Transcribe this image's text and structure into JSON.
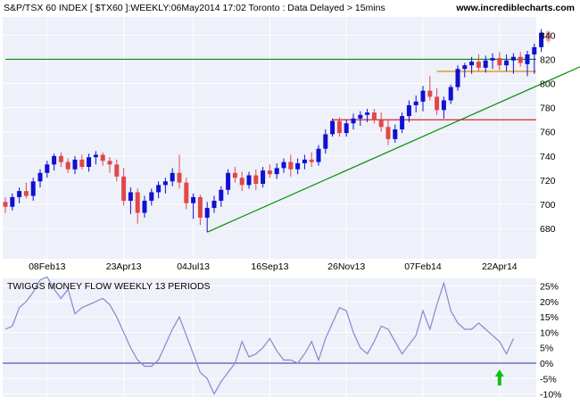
{
  "colors": {
    "background": "#ffffff",
    "plot_background": "#eef0fa",
    "grid": "#ffffff",
    "up_candle": "#1010d0",
    "down_candle": "#e04848",
    "last_candle": "#f2a0a8",
    "long_trendline": "#009000",
    "resistance_green": "#009000",
    "support_orange": "#e08a00",
    "support_red": "#d01010",
    "indicator_line": "#8888cc",
    "zero_line": "#3030a0",
    "arrow": "#10c010",
    "text": "#000000"
  },
  "header": {
    "title": "S&P/TSX 60 INDEX [ $TX60 ]:WEEKLY:06May2014 17:02 Toronto : Data Delayed > 15mins",
    "watermark": "www.incrediblecharts.com"
  },
  "indicator": {
    "title": "TWIGGS MONEY FLOW WEEKLY 13 PERIODS"
  },
  "chart_data": [
    {
      "type": "candlestick",
      "title": "S&P/TSX 60 INDEX [ $TX60 ]:WEEKLY:06May2014 17:02 Toronto : Data Delayed > 15mins",
      "x_tick_labels": [
        "08Feb13",
        "23Apr13",
        "04Jul13",
        "16Sep13",
        "26Nov13",
        "07Feb14",
        "22Apr14"
      ],
      "x_tick_index": [
        6,
        17,
        27,
        38,
        49,
        60,
        71
      ],
      "y_tick_labels": [
        "680",
        "700",
        "720",
        "740",
        "760",
        "780",
        "800",
        "820",
        "840"
      ],
      "ylim": [
        655,
        855
      ],
      "grid": true,
      "series": [
        {
          "values": [
            [
              702,
              706,
              693,
              698
            ],
            [
              698,
              709,
              695,
              706
            ],
            [
              706,
              714,
              701,
              711
            ],
            [
              711,
              718,
              705,
              707
            ],
            [
              707,
              722,
              703,
              719
            ],
            [
              719,
              729,
              714,
              726
            ],
            [
              726,
              736,
              722,
              733
            ],
            [
              733,
              742,
              728,
              740
            ],
            [
              740,
              743,
              731,
              735
            ],
            [
              735,
              738,
              726,
              729
            ],
            [
              729,
              740,
              725,
              737
            ],
            [
              737,
              741,
              729,
              731
            ],
            [
              731,
              742,
              727,
              739
            ],
            [
              739,
              744,
              733,
              741
            ],
            [
              741,
              743,
              732,
              736
            ],
            [
              736,
              739,
              726,
              733
            ],
            [
              733,
              737,
              719,
              723
            ],
            [
              723,
              730,
              699,
              703
            ],
            [
              703,
              714,
              692,
              710
            ],
            [
              710,
              713,
              684,
              693
            ],
            [
              693,
              707,
              689,
              703
            ],
            [
              703,
              713,
              699,
              710
            ],
            [
              710,
              719,
              705,
              716
            ],
            [
              716,
              722,
              709,
              719
            ],
            [
              719,
              730,
              715,
              726
            ],
            [
              726,
              741,
              713,
              718
            ],
            [
              718,
              722,
              696,
              701
            ],
            [
              701,
              709,
              688,
              706
            ],
            [
              706,
              708,
              683,
              689
            ],
            [
              689,
              702,
              677,
              697
            ],
            [
              697,
              707,
              693,
              703
            ],
            [
              703,
              715,
              698,
              712
            ],
            [
              712,
              729,
              708,
              726
            ],
            [
              726,
              731,
              718,
              722
            ],
            [
              722,
              727,
              711,
              716
            ],
            [
              716,
              727,
              713,
              724
            ],
            [
              724,
              729,
              712,
              717
            ],
            [
              717,
              731,
              714,
              728
            ],
            [
              728,
              733,
              722,
              725
            ],
            [
              725,
              734,
              721,
              730
            ],
            [
              730,
              738,
              726,
              735
            ],
            [
              735,
              741,
              723,
              729
            ],
            [
              729,
              738,
              725,
              734
            ],
            [
              734,
              741,
              729,
              737
            ],
            [
              737,
              743,
              731,
              735
            ],
            [
              735,
              749,
              732,
              746
            ],
            [
              746,
              762,
              742,
              758
            ],
            [
              758,
              771,
              756,
              769
            ],
            [
              769,
              772,
              756,
              759
            ],
            [
              759,
              770,
              756,
              767
            ],
            [
              767,
              775,
              762,
              771
            ],
            [
              771,
              777,
              765,
              774
            ],
            [
              774,
              779,
              768,
              776
            ],
            [
              776,
              779,
              767,
              770
            ],
            [
              770,
              776,
              760,
              764
            ],
            [
              764,
              770,
              749,
              754
            ],
            [
              754,
              766,
              751,
              762
            ],
            [
              762,
              776,
              759,
              773
            ],
            [
              773,
              786,
              768,
              782
            ],
            [
              782,
              790,
              776,
              785
            ],
            [
              785,
              798,
              777,
              794
            ],
            [
              794,
              806,
              786,
              789
            ],
            [
              789,
              796,
              774,
              778
            ],
            [
              778,
              789,
              771,
              786
            ],
            [
              786,
              799,
              783,
              797
            ],
            [
              797,
              815,
              794,
              812
            ],
            [
              812,
              817,
              805,
              815
            ],
            [
              815,
              822,
              808,
              818
            ],
            [
              818,
              824,
              810,
              813
            ],
            [
              813,
              823,
              809,
              819
            ],
            [
              819,
              825,
              812,
              821
            ],
            [
              821,
              826,
              811,
              815
            ],
            [
              815,
              824,
              810,
              819
            ],
            [
              819,
              825,
              808,
              822
            ],
            [
              822,
              826,
              814,
              817
            ],
            [
              816,
              827,
              806,
              824
            ],
            [
              824,
              833,
              808,
              830
            ],
            [
              830,
              845,
              826,
              842
            ],
            [
              843,
              844,
              833,
              835
            ]
          ]
        }
      ],
      "annotations": [
        {
          "name": "long-trendline",
          "type": "line",
          "points": [
            [
              29,
              677
            ],
            [
              85,
              820
            ]
          ]
        },
        {
          "name": "resistance-line",
          "type": "hline",
          "y": 820,
          "x_range": [
            0,
            85
          ]
        },
        {
          "name": "support-line-810",
          "type": "hline",
          "y": 810,
          "x_range": [
            62,
            85
          ]
        },
        {
          "name": "support-line-770",
          "type": "hline",
          "y": 770,
          "x_range": [
            47,
            85
          ]
        }
      ]
    },
    {
      "type": "line",
      "title": "TWIGGS MONEY FLOW WEEKLY 13 PERIODS",
      "y_tick_labels": [
        "-10%",
        "-5%",
        "0%",
        "5%",
        "10%",
        "15%",
        "20%",
        "25%"
      ],
      "ylim": [
        -11,
        27.5
      ],
      "grid": true,
      "x": [
        0,
        1,
        2,
        3,
        4,
        5,
        6,
        7,
        8,
        9,
        10,
        11,
        12,
        13,
        14,
        15,
        16,
        17,
        18,
        19,
        20,
        21,
        22,
        23,
        24,
        25,
        26,
        27,
        28,
        29,
        30,
        31,
        32,
        33,
        34,
        35,
        36,
        37,
        38,
        39,
        40,
        41,
        42,
        43,
        44,
        45,
        46,
        47,
        48,
        49,
        50,
        51,
        52,
        53,
        54,
        55,
        56,
        57,
        58,
        59,
        60,
        61,
        62,
        63,
        64,
        65,
        66,
        67,
        68,
        69,
        70,
        71,
        72,
        73
      ],
      "series": [
        {
          "values": [
            11,
            12,
            18,
            20,
            23,
            27,
            28,
            24,
            21,
            24,
            16,
            18,
            19,
            20,
            21,
            19,
            15,
            10,
            5,
            1,
            -1,
            -1,
            1,
            6,
            11,
            15,
            9,
            3,
            -3,
            -5,
            -10,
            -6,
            -3,
            0,
            7,
            2,
            3,
            5,
            8,
            4,
            1,
            1,
            0,
            3,
            7,
            1,
            8,
            13,
            18,
            17,
            10,
            5,
            3,
            7,
            12,
            11,
            7,
            3,
            6,
            9,
            17,
            11,
            19,
            26,
            17,
            13,
            11,
            11,
            13,
            11,
            9,
            7,
            3,
            8
          ]
        }
      ],
      "annotations": [
        {
          "name": "buy-signal-arrow",
          "type": "up-arrow",
          "x": 71
        }
      ]
    }
  ]
}
